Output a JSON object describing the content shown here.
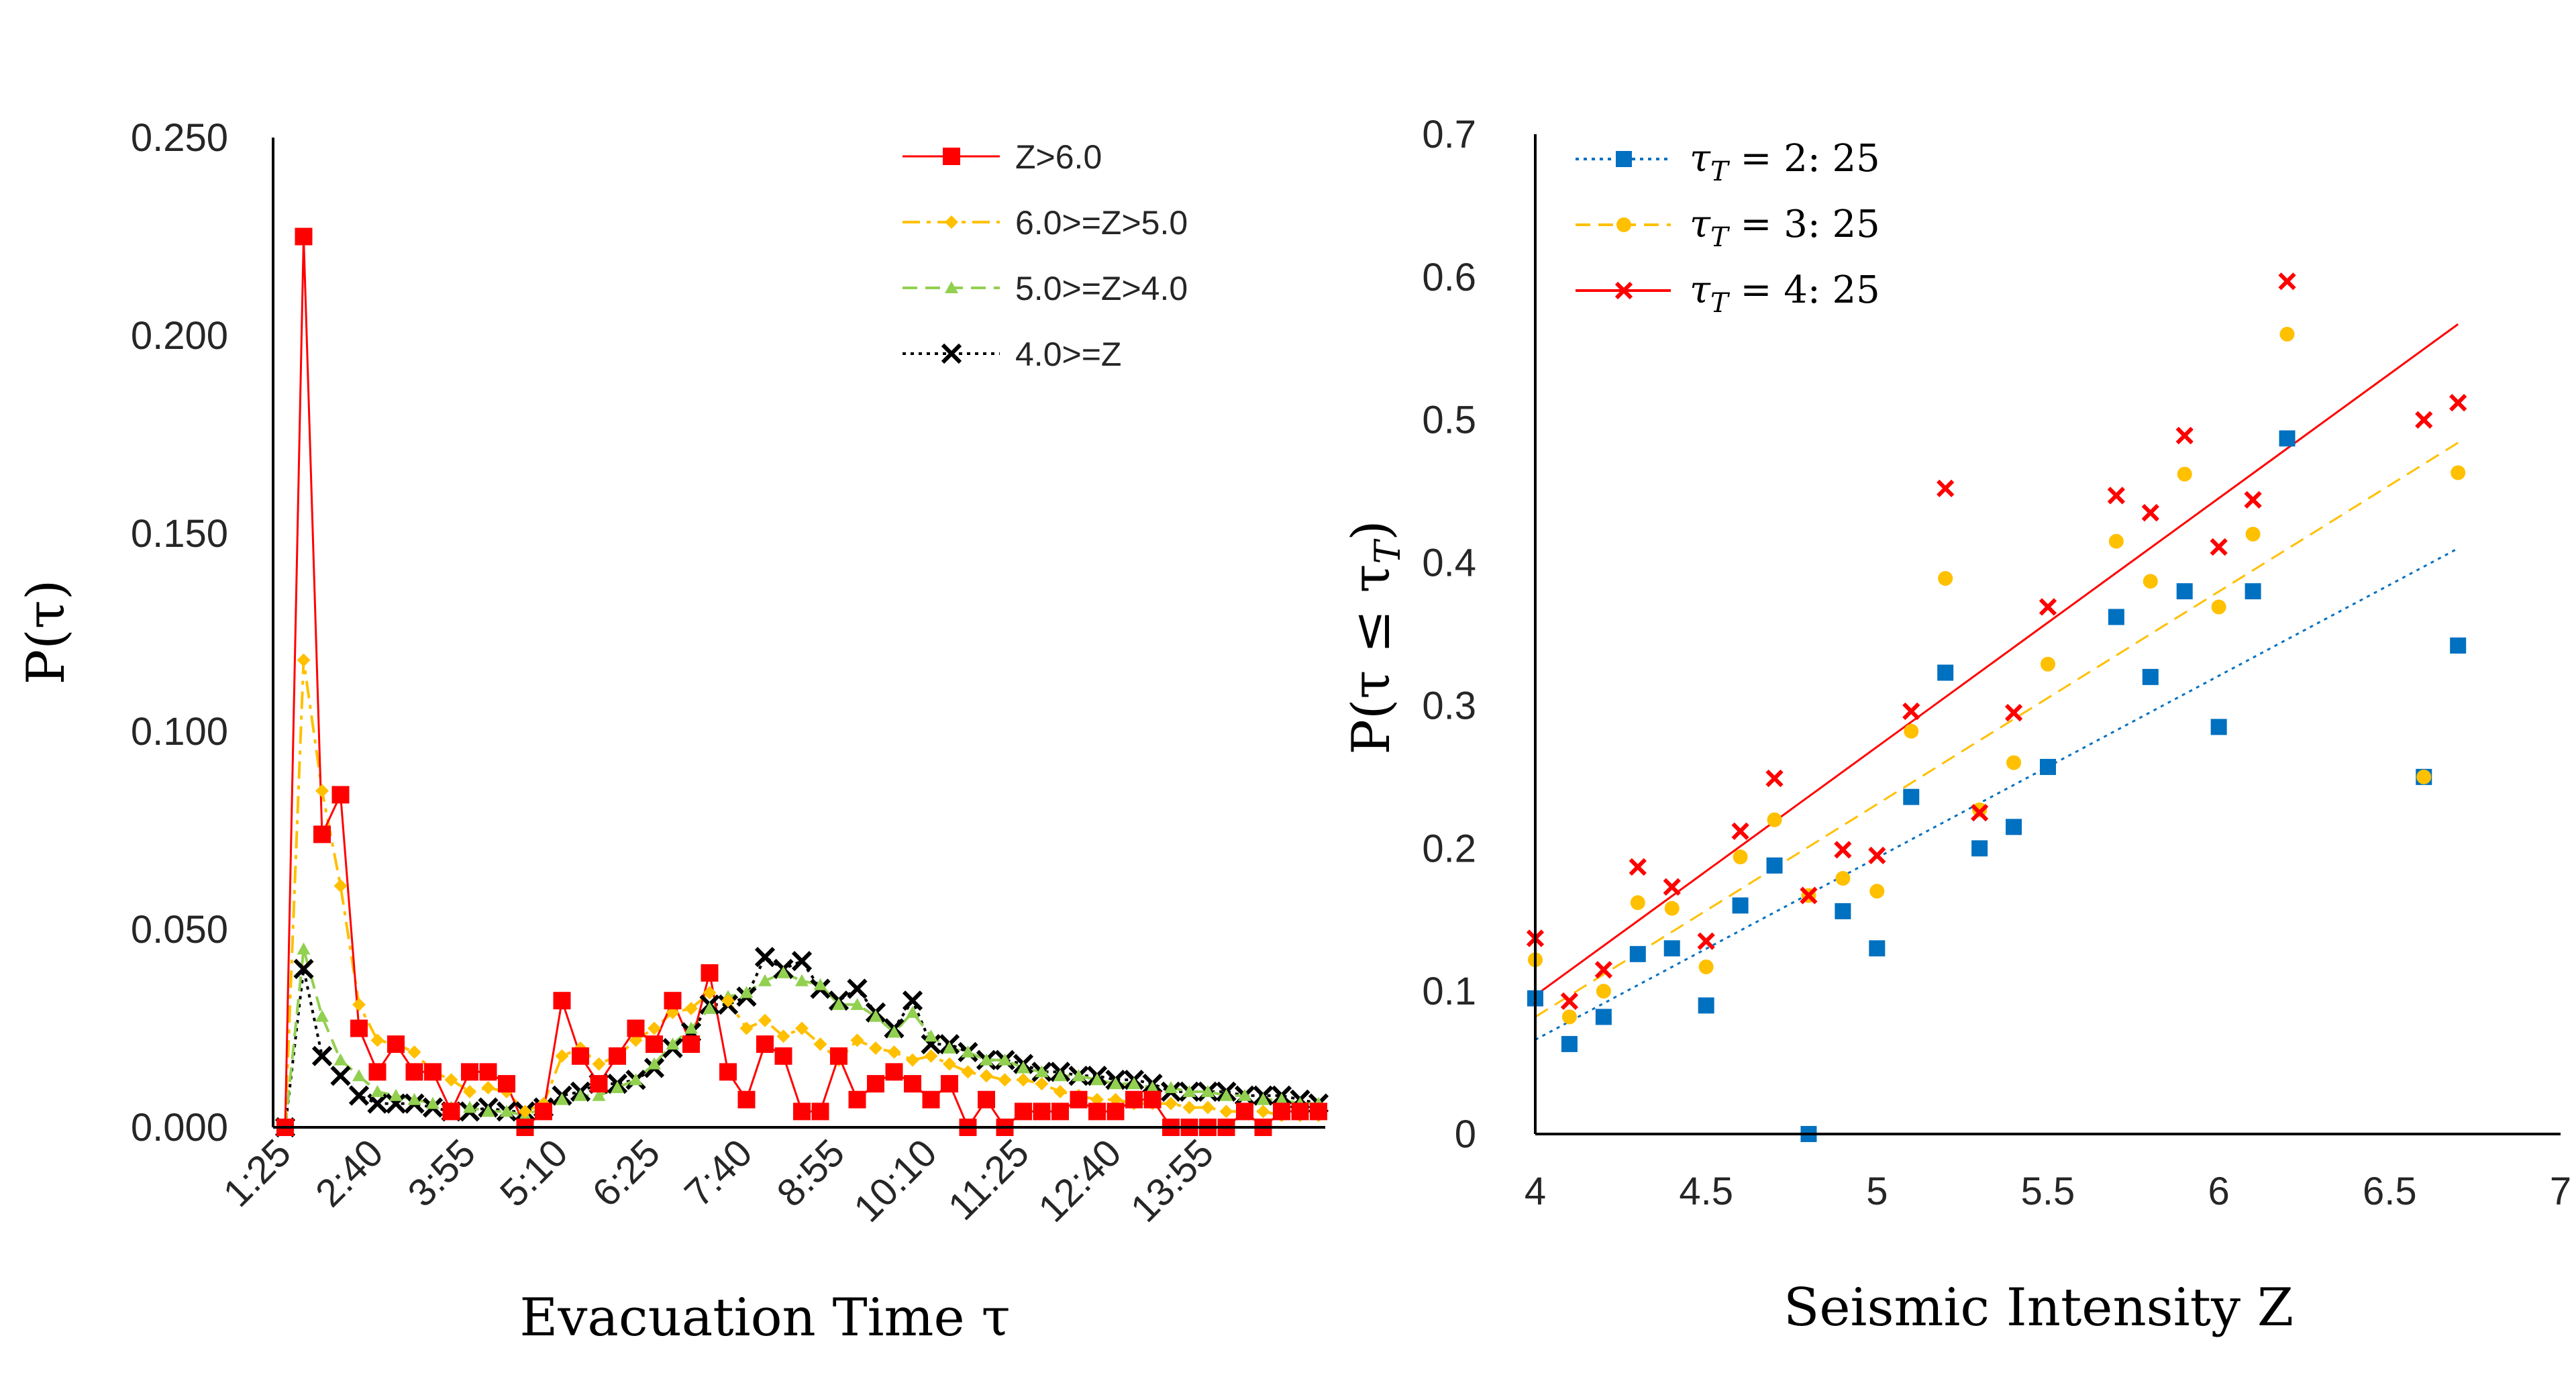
{
  "chart_data": [
    {
      "type": "line",
      "title": "",
      "xlabel": "Evacuation Time τ",
      "ylabel": "P(τ)",
      "ylim": [
        0,
        0.25
      ],
      "yticks": [
        "0.000",
        "0.050",
        "0.100",
        "0.150",
        "0.200",
        "0.250"
      ],
      "xticks": [
        "1:25",
        "2:40",
        "3:55",
        "5:10",
        "6:25",
        "7:40",
        "8:55",
        "10:10",
        "11:25",
        "12:40",
        "13:55"
      ],
      "x_units": "time step (15 s bins starting at 1:25)",
      "legend_position": "top-right",
      "series": [
        {
          "name": "Z>6.0",
          "color": "#ff0000",
          "marker": "square",
          "line": "solid",
          "values": [
            0,
            0.225,
            0.074,
            0.084,
            0.025,
            0.014,
            0.021,
            0.014,
            0.014,
            0.004,
            0.014,
            0.014,
            0.011,
            0,
            0.004,
            0.032,
            0.018,
            0.011,
            0.018,
            0.025,
            0.021,
            0.032,
            0.021,
            0.039,
            0.014,
            0.007,
            0.021,
            0.018,
            0.004,
            0.004,
            0.018,
            0.007,
            0.011,
            0.014,
            0.011,
            0.007,
            0.011,
            0,
            0.007,
            0,
            0.004,
            0.004,
            0.004,
            0.007,
            0.004,
            0.004,
            0.007,
            0.007,
            0,
            0,
            0,
            0,
            0.004,
            0,
            0.004,
            0.004,
            0.004
          ]
        },
        {
          "name": "6.0>=Z>5.0",
          "color": "#ffc000",
          "marker": "diamond",
          "line": "dashdot",
          "values": [
            0,
            0.118,
            0.085,
            0.061,
            0.031,
            0.022,
            0.021,
            0.019,
            0.014,
            0.012,
            0.009,
            0.01,
            0.009,
            0.004,
            0.006,
            0.018,
            0.02,
            0.016,
            0.018,
            0.022,
            0.025,
            0.029,
            0.03,
            0.034,
            0.032,
            0.025,
            0.027,
            0.023,
            0.025,
            0.021,
            0.017,
            0.022,
            0.02,
            0.019,
            0.017,
            0.018,
            0.016,
            0.014,
            0.013,
            0.012,
            0.012,
            0.011,
            0.009,
            0.008,
            0.007,
            0.007,
            0.006,
            0.006,
            0.006,
            0.005,
            0.005,
            0.004,
            0.004,
            0.004,
            0.003,
            0.003,
            0.003
          ]
        },
        {
          "name": "5.0>=Z>4.0",
          "color": "#92d050",
          "marker": "triangle",
          "line": "dashed",
          "values": [
            0,
            0.045,
            0.028,
            0.017,
            0.013,
            0.009,
            0.008,
            0.007,
            0.006,
            0.005,
            0.005,
            0.004,
            0.004,
            0.003,
            0.005,
            0.007,
            0.008,
            0.008,
            0.01,
            0.012,
            0.016,
            0.021,
            0.025,
            0.03,
            0.033,
            0.034,
            0.037,
            0.039,
            0.037,
            0.036,
            0.031,
            0.031,
            0.028,
            0.024,
            0.029,
            0.023,
            0.02,
            0.019,
            0.017,
            0.017,
            0.015,
            0.014,
            0.013,
            0.013,
            0.012,
            0.011,
            0.011,
            0.01,
            0.01,
            0.009,
            0.009,
            0.008,
            0.008,
            0.007,
            0.007,
            0.006,
            0.006
          ]
        },
        {
          "name": "4.0>=Z",
          "color": "#000000",
          "marker": "x",
          "line": "dotted",
          "values": [
            0,
            0.04,
            0.018,
            0.013,
            0.008,
            0.006,
            0.006,
            0.006,
            0.005,
            0.004,
            0.004,
            0.005,
            0.004,
            0.004,
            0.005,
            0.008,
            0.009,
            0.011,
            0.011,
            0.012,
            0.015,
            0.02,
            0.024,
            0.031,
            0.031,
            0.033,
            0.043,
            0.04,
            0.042,
            0.035,
            0.032,
            0.035,
            0.029,
            0.025,
            0.032,
            0.021,
            0.021,
            0.019,
            0.017,
            0.017,
            0.016,
            0.014,
            0.014,
            0.013,
            0.013,
            0.012,
            0.012,
            0.011,
            0.009,
            0.009,
            0.009,
            0.009,
            0.008,
            0.008,
            0.008,
            0.007,
            0.006
          ]
        }
      ]
    },
    {
      "type": "scatter",
      "title": "",
      "xlabel": "Seismic Intensity Z",
      "ylabel": "P(τ ≤ τT)",
      "xlim": [
        4,
        7
      ],
      "ylim": [
        0,
        0.7
      ],
      "xticks": [
        "4",
        "4.5",
        "5",
        "5.5",
        "6",
        "6.5",
        "7"
      ],
      "yticks": [
        "0",
        "0.1",
        "0.2",
        "0.3",
        "0.4",
        "0.5",
        "0.6",
        "0.7"
      ],
      "legend_position": "top-left",
      "series": [
        {
          "name": "τT = 2:25",
          "legend_sub": "T",
          "legend_rest": " = 2: 25",
          "color": "#0070c0",
          "marker": "square",
          "trendline": {
            "style": "dotted",
            "from": [
              4,
              0.066
            ],
            "to": [
              6.7,
              0.41
            ]
          },
          "x": [
            4.0,
            4.1,
            4.2,
            4.3,
            4.4,
            4.5,
            4.6,
            4.7,
            4.8,
            4.9,
            5.0,
            5.1,
            5.2,
            5.3,
            5.4,
            5.5,
            5.7,
            5.8,
            5.9,
            6.0,
            6.1,
            6.2,
            6.6,
            6.7
          ],
          "y": [
            0.095,
            0.063,
            0.082,
            0.126,
            0.13,
            0.09,
            0.16,
            0.188,
            0.0,
            0.156,
            0.13,
            0.236,
            0.323,
            0.2,
            0.215,
            0.257,
            0.362,
            0.32,
            0.38,
            0.285,
            0.38,
            0.487,
            0.25,
            0.342
          ]
        },
        {
          "name": "τT = 3:25",
          "legend_sub": "T",
          "legend_rest": " = 3: 25",
          "color": "#ffc000",
          "marker": "circle",
          "trendline": {
            "style": "dashed",
            "from": [
              4,
              0.082
            ],
            "to": [
              6.7,
              0.484
            ]
          },
          "x": [
            4.0,
            4.1,
            4.2,
            4.3,
            4.4,
            4.5,
            4.6,
            4.7,
            4.8,
            4.9,
            5.0,
            5.1,
            5.2,
            5.3,
            5.4,
            5.5,
            5.7,
            5.8,
            5.9,
            6.0,
            6.1,
            6.2,
            6.6,
            6.7
          ],
          "y": [
            0.122,
            0.082,
            0.1,
            0.162,
            0.158,
            0.117,
            0.194,
            0.22,
            0.167,
            0.179,
            0.17,
            0.282,
            0.389,
            0.227,
            0.26,
            0.329,
            0.415,
            0.387,
            0.462,
            0.369,
            0.42,
            0.56,
            0.25,
            0.463
          ]
        },
        {
          "name": "τT = 4:25",
          "legend_sub": "T",
          "legend_rest": " = 4: 25",
          "color": "#ff0000",
          "marker": "x",
          "trendline": {
            "style": "solid",
            "from": [
              4,
              0.097
            ],
            "to": [
              6.7,
              0.567
            ]
          },
          "x": [
            4.0,
            4.1,
            4.2,
            4.3,
            4.4,
            4.5,
            4.6,
            4.7,
            4.8,
            4.9,
            5.0,
            5.1,
            5.2,
            5.3,
            5.4,
            5.5,
            5.7,
            5.8,
            5.9,
            6.0,
            6.1,
            6.2,
            6.6,
            6.7
          ],
          "y": [
            0.137,
            0.093,
            0.115,
            0.187,
            0.173,
            0.135,
            0.212,
            0.249,
            0.167,
            0.199,
            0.195,
            0.296,
            0.452,
            0.225,
            0.295,
            0.369,
            0.447,
            0.435,
            0.489,
            0.411,
            0.444,
            0.597,
            0.5,
            0.512
          ]
        }
      ]
    }
  ]
}
